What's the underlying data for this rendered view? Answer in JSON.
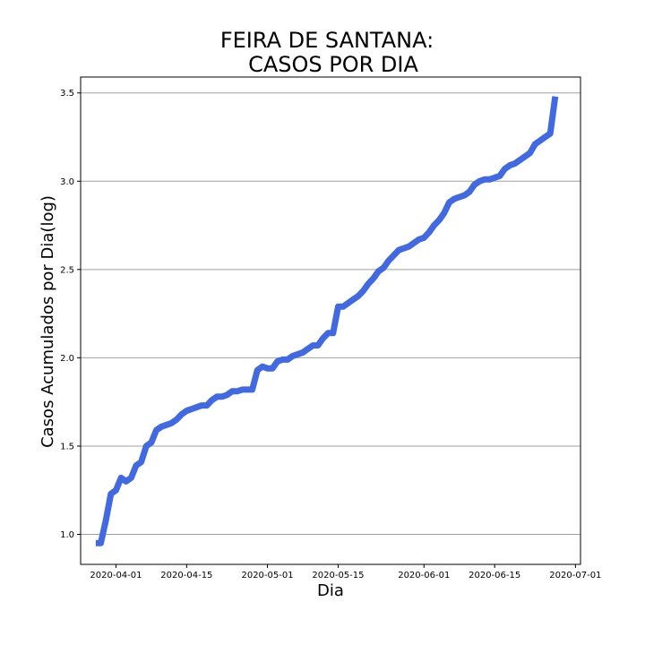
{
  "chart_data": {
    "type": "line",
    "title_lines": [
      "FEIRA DE SANTANA:",
      "CASOS POR DIA"
    ],
    "xlabel": "Dia",
    "ylabel": "Casos Acumulados por Dia(log)",
    "x_ticks": [
      "2020-04-01",
      "2020-04-15",
      "2020-05-01",
      "2020-05-15",
      "2020-06-01",
      "2020-06-15",
      "2020-07-01"
    ],
    "y_ticks": [
      "1.0",
      "1.5",
      "2.0",
      "2.5",
      "3.0",
      "3.5"
    ],
    "xlim": [
      "2020-03-25",
      "2020-07-02"
    ],
    "ylim": [
      0.83,
      3.59
    ],
    "grid": "horizontal",
    "line_color": "#4169e1",
    "series": [
      {
        "x": [
          "2020-03-28",
          "2020-03-29",
          "2020-03-30",
          "2020-03-31",
          "2020-04-01",
          "2020-04-02",
          "2020-04-03",
          "2020-04-04",
          "2020-04-05",
          "2020-04-06",
          "2020-04-07",
          "2020-04-08",
          "2020-04-09",
          "2020-04-10",
          "2020-04-11",
          "2020-04-12",
          "2020-04-13",
          "2020-04-14",
          "2020-04-15",
          "2020-04-16",
          "2020-04-17",
          "2020-04-18",
          "2020-04-19",
          "2020-04-20",
          "2020-04-21",
          "2020-04-22",
          "2020-04-23",
          "2020-04-24",
          "2020-04-25",
          "2020-04-26",
          "2020-04-27",
          "2020-04-28",
          "2020-04-29",
          "2020-04-30",
          "2020-05-01",
          "2020-05-02",
          "2020-05-03",
          "2020-05-04",
          "2020-05-05",
          "2020-05-06",
          "2020-05-07",
          "2020-05-08",
          "2020-05-09",
          "2020-05-10",
          "2020-05-11",
          "2020-05-12",
          "2020-05-13",
          "2020-05-14",
          "2020-05-15",
          "2020-05-16",
          "2020-05-17",
          "2020-05-18",
          "2020-05-19",
          "2020-05-20",
          "2020-05-21",
          "2020-05-22",
          "2020-05-23",
          "2020-05-24",
          "2020-05-25",
          "2020-05-26",
          "2020-05-27",
          "2020-05-28",
          "2020-05-29",
          "2020-05-30",
          "2020-05-31",
          "2020-06-01",
          "2020-06-02",
          "2020-06-03",
          "2020-06-04",
          "2020-06-05",
          "2020-06-06",
          "2020-06-07",
          "2020-06-08",
          "2020-06-09",
          "2020-06-10",
          "2020-06-11",
          "2020-06-12",
          "2020-06-13",
          "2020-06-14",
          "2020-06-15",
          "2020-06-16",
          "2020-06-17",
          "2020-06-18",
          "2020-06-19",
          "2020-06-20",
          "2020-06-21",
          "2020-06-22",
          "2020-06-23",
          "2020-06-24",
          "2020-06-25",
          "2020-06-26",
          "2020-06-27"
        ],
        "values": [
          0.95,
          0.95,
          1.08,
          1.23,
          1.25,
          1.32,
          1.3,
          1.32,
          1.39,
          1.41,
          1.5,
          1.52,
          1.59,
          1.61,
          1.62,
          1.63,
          1.65,
          1.68,
          1.7,
          1.71,
          1.72,
          1.73,
          1.73,
          1.76,
          1.78,
          1.78,
          1.79,
          1.81,
          1.81,
          1.82,
          1.82,
          1.82,
          1.93,
          1.95,
          1.94,
          1.94,
          1.98,
          1.99,
          1.99,
          2.01,
          2.02,
          2.03,
          2.05,
          2.07,
          2.07,
          2.11,
          2.14,
          2.14,
          2.29,
          2.29,
          2.31,
          2.33,
          2.35,
          2.38,
          2.42,
          2.45,
          2.49,
          2.51,
          2.55,
          2.58,
          2.61,
          2.62,
          2.63,
          2.65,
          2.67,
          2.68,
          2.71,
          2.75,
          2.78,
          2.82,
          2.88,
          2.9,
          2.91,
          2.92,
          2.94,
          2.98,
          3.0,
          3.01,
          3.01,
          3.02,
          3.03,
          3.07,
          3.09,
          3.1,
          3.12,
          3.14,
          3.16,
          3.21,
          3.23,
          3.25,
          3.27,
          3.48
        ]
      }
    ]
  }
}
